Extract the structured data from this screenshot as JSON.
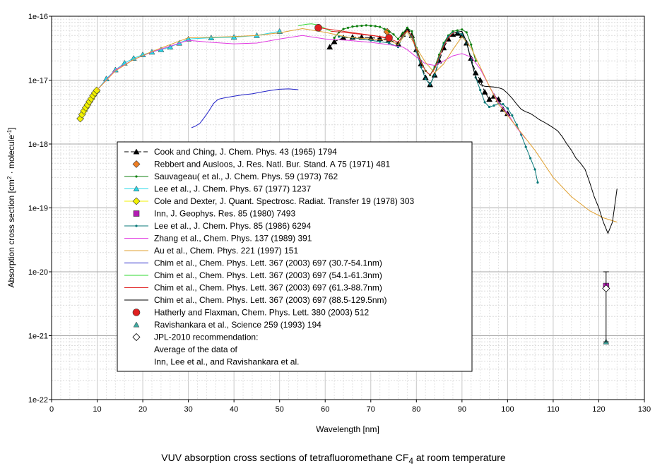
{
  "chart_data": {
    "type": "line",
    "x_label": "Wavelength [nm]",
    "y_label_parts": [
      "Absorption cross section [cm",
      "2",
      " · molecule",
      "-1",
      "]"
    ],
    "caption_parts": [
      "VUV absorption cross sections of tetrafluoromethane CF",
      "4",
      " at room temperature"
    ],
    "y_scale": "log",
    "xlim": [
      0,
      130
    ],
    "ylim": [
      1e-22,
      1e-16
    ],
    "x_ticks": [
      0,
      10,
      20,
      30,
      40,
      50,
      60,
      70,
      80,
      90,
      100,
      110,
      120,
      130
    ],
    "y_tick_labels": [
      "1e-16",
      "1e-17",
      "1e-18",
      "1e-19",
      "1e-20",
      "1e-21",
      "1e-22"
    ],
    "grid": true,
    "legend_position": "center-left",
    "series": [
      {
        "name": "Cook and Ching, J. Chem. Phys. 43 (1965) 1794",
        "color": "#000000",
        "marker": "triangle",
        "dash": "6,3",
        "x": [
          61,
          62,
          64,
          66,
          68,
          70,
          72,
          74,
          76,
          77,
          78,
          79,
          80,
          81,
          82,
          83,
          84,
          85,
          86,
          87,
          88,
          89,
          90,
          91,
          92,
          93,
          94,
          95,
          96,
          97,
          98,
          99,
          100
        ],
        "y": [
          3.3e-17,
          4e-17,
          4.6e-17,
          4.7e-17,
          4.7e-17,
          4.6e-17,
          4.5e-17,
          4.3e-17,
          3.7e-17,
          5.2e-17,
          6.2e-17,
          5e-17,
          3e-17,
          1.8e-17,
          1.1e-17,
          8.5e-18,
          1.2e-17,
          2e-17,
          3.2e-17,
          4.4e-17,
          5.2e-17,
          5.4e-17,
          5e-17,
          3.8e-17,
          2.2e-17,
          1.3e-17,
          1e-17,
          6.5e-18,
          5e-18,
          5.6e-18,
          5e-18,
          3.5e-18,
          3e-18
        ]
      },
      {
        "name": "Rebbert and Ausloos, J. Res. Natl. Bur. Stand. A 75 (1971) 481",
        "color": "#ee7f24",
        "marker": "diamond",
        "dash": "",
        "x": [
          73.6
        ],
        "y": [
          5.7e-17
        ]
      },
      {
        "name": "Sauvageau( et al., J. Chem. Phys. 59 (1973) 762",
        "color": "#108010",
        "marker": "dot",
        "dash": "",
        "x": [
          62,
          63,
          64,
          65,
          66,
          67,
          68,
          69,
          70,
          71,
          72,
          73,
          74,
          75,
          76,
          77,
          78,
          79,
          80,
          81,
          82,
          83,
          84,
          85,
          86,
          87,
          88,
          89,
          90,
          91,
          92,
          93
        ],
        "y": [
          4.6e-17,
          5.6e-17,
          6.3e-17,
          6.6e-17,
          6.9e-17,
          7e-17,
          7.1e-17,
          7.2e-17,
          7.1e-17,
          7e-17,
          6.8e-17,
          6.3e-17,
          5.8e-17,
          5.2e-17,
          4.4e-17,
          5.4e-17,
          6.6e-17,
          5.8e-17,
          3.2e-17,
          2e-17,
          1.4e-17,
          1.2e-17,
          1.6e-17,
          2.5e-17,
          3.8e-17,
          5e-17,
          5.8e-17,
          6e-17,
          6.2e-17,
          5.6e-17,
          3.6e-17,
          2e-17
        ]
      },
      {
        "name": "Lee et al., J. Chem. Phys. 67 (1977) 1237",
        "color": "#28d8e8",
        "marker": "triangle",
        "dash": "",
        "x": [
          10,
          12,
          14,
          16,
          18,
          20,
          22,
          24,
          26,
          28,
          30,
          35,
          40,
          45,
          50
        ],
        "y": [
          7e-18,
          1.05e-17,
          1.45e-17,
          1.85e-17,
          2.2e-17,
          2.5e-17,
          2.75e-17,
          3e-17,
          3.3e-17,
          3.8e-17,
          4.4e-17,
          4.6e-17,
          4.7e-17,
          5e-17,
          5.8e-17
        ]
      },
      {
        "name": "Cole and Dexter, J. Quant. Spectrosc. Radiat. Transfer 19 (1978) 303",
        "color": "#f2f200",
        "marker": "diamond",
        "dash": "",
        "x": [
          6.3,
          6.7,
          7.1,
          7.5,
          7.9,
          8.3,
          8.7,
          9.1,
          9.5,
          9.9
        ],
        "y": [
          2.5e-18,
          2.9e-18,
          3.3e-18,
          3.7e-18,
          4.1e-18,
          4.6e-18,
          5.1e-18,
          5.7e-18,
          6.3e-18,
          6.9e-18
        ]
      },
      {
        "name": "Inn, J. Geophys. Res. 85 (1980) 7493",
        "color": "#b41cb4",
        "marker": "square",
        "dash": "",
        "x": [
          121.6
        ],
        "y": [
          6e-21
        ]
      },
      {
        "name": "Lee et al., J. Chem. Phys. 85 (1986) 6294",
        "color": "#087878",
        "marker": "dot",
        "dash": "",
        "x": [
          63,
          66,
          70,
          72,
          74,
          76,
          77,
          78,
          79,
          80,
          81,
          82,
          83,
          84,
          85,
          86,
          87,
          88,
          89,
          90,
          91,
          92,
          93,
          94,
          95,
          96,
          97,
          98,
          99,
          100,
          101,
          102,
          103,
          104,
          105,
          106,
          106.6
        ],
        "y": [
          4.8e-17,
          4.6e-17,
          4.2e-17,
          4e-17,
          3.8e-17,
          3.3e-17,
          4.8e-17,
          5.9e-17,
          4.8e-17,
          2.8e-17,
          1.6e-17,
          1.05e-17,
          8.5e-18,
          1.2e-17,
          2.2e-17,
          3.6e-17,
          4.8e-17,
          5.5e-17,
          5.6e-17,
          5.2e-17,
          3.8e-17,
          2.1e-17,
          1.1e-17,
          7e-18,
          4.5e-18,
          3.8e-18,
          4e-18,
          4.3e-18,
          4.2e-18,
          3.6e-18,
          2.8e-18,
          2e-18,
          1.4e-18,
          9e-19,
          6e-19,
          4e-19,
          2.5e-19
        ]
      },
      {
        "name": "Zhang et al., Chem. Phys. 137 (1989) 391",
        "color": "#e23ce2",
        "marker": "",
        "dash": "",
        "x": [
          10,
          14,
          18,
          22,
          26,
          30,
          35,
          40,
          45,
          50,
          55,
          60,
          65,
          70,
          74,
          77,
          78,
          80,
          82,
          84,
          86,
          88,
          90,
          92,
          94,
          96,
          98,
          100,
          102,
          104
        ],
        "y": [
          7e-18,
          1.45e-17,
          2.1e-17,
          2.75e-17,
          3.4e-17,
          4.2e-17,
          3.9e-17,
          3.7e-17,
          3.8e-17,
          4.4e-17,
          5e-17,
          4.4e-17,
          4.2e-17,
          3.9e-17,
          3.6e-17,
          3.3e-17,
          3e-17,
          2.3e-17,
          1.8e-17,
          1.7e-17,
          2e-17,
          2.4e-17,
          2.6e-17,
          2.3e-17,
          1.5e-17,
          8e-18,
          4.5e-18,
          3e-18,
          1.8e-18,
          1.2e-18
        ]
      },
      {
        "name": "Au et al., Chem. Phys. 221 (1997) 151",
        "color": "#e0a030",
        "marker": "",
        "dash": "",
        "x": [
          10,
          14,
          18,
          22,
          26,
          30,
          35,
          40,
          45,
          50,
          55,
          60,
          65,
          70,
          74,
          76,
          78,
          80,
          82,
          84,
          86,
          88,
          90,
          92,
          94,
          96,
          98,
          100,
          103,
          106,
          110,
          114,
          118,
          121,
          124
        ],
        "y": [
          7e-18,
          1.4e-17,
          2.1e-17,
          2.8e-17,
          3.6e-17,
          4.6e-17,
          4.7e-17,
          4.8e-17,
          5e-17,
          5.5e-17,
          6.4e-17,
          5.6e-17,
          4.7e-17,
          4.4e-17,
          4.2e-17,
          3.6e-17,
          5.8e-17,
          3.2e-17,
          1.9e-17,
          1.3e-17,
          1.8e-17,
          3e-17,
          4.8e-17,
          3.2e-17,
          1.6e-17,
          8e-18,
          4.2e-18,
          2.8e-18,
          1.5e-18,
          8e-19,
          3e-19,
          1.5e-19,
          9e-20,
          7e-20,
          6e-20
        ]
      },
      {
        "name": "Chim et al., Chem. Phys. Lett. 367 (2003) 697 (30.7-54.1nm)",
        "color": "#2020c8",
        "marker": "",
        "dash": "",
        "x": [
          30.7,
          31.5,
          32.5,
          33.5,
          34.5,
          35.5,
          36.5,
          38,
          40,
          42,
          44,
          46,
          48,
          50,
          52,
          54.1
        ],
        "y": [
          1.8e-18,
          1.9e-18,
          2.1e-18,
          2.6e-18,
          3.3e-18,
          4.3e-18,
          5e-18,
          5.3e-18,
          5.6e-18,
          5.9e-18,
          6.1e-18,
          6.5e-18,
          6.9e-18,
          7.2e-18,
          7.3e-18,
          7.1e-18
        ]
      },
      {
        "name": "Chim et al., Chem. Phys. Lett. 367 (2003) 697 (54.1-61.3nm)",
        "color": "#30d830",
        "marker": "",
        "dash": "",
        "x": [
          54.1,
          55,
          56,
          57,
          58,
          59,
          60,
          61.3
        ],
        "y": [
          7.1e-17,
          7.3e-17,
          7.5e-17,
          7.6e-17,
          7.4e-17,
          7e-17,
          6.4e-17,
          5.8e-17
        ]
      },
      {
        "name": "Chim et al., Chem. Phys. Lett. 367 (2003) 697 (61.3-88.7nm)",
        "color": "#e02020",
        "marker": "",
        "dash": "",
        "x": [
          61.3,
          63,
          65,
          67,
          69,
          71,
          73,
          75,
          76,
          77,
          78,
          79,
          80,
          81,
          82,
          83,
          84,
          85,
          86,
          87,
          88,
          88.7
        ],
        "y": [
          5.8e-17,
          5.7e-17,
          5.5e-17,
          5.3e-17,
          5.1e-17,
          4.9e-17,
          4.6e-17,
          4.2e-17,
          3.9e-17,
          5e-17,
          6e-17,
          5e-17,
          3e-17,
          1.9e-17,
          1.4e-17,
          1.2e-17,
          1.5e-17,
          2.3e-17,
          3.4e-17,
          4.6e-17,
          5.4e-17,
          5.6e-17
        ]
      },
      {
        "name": "Chim et al., Chem. Phys. Lett. 367 (2003) 697 (88.5-129.5nm)",
        "color": "#000000",
        "marker": "",
        "dash": "",
        "x": [
          88.5,
          90,
          91,
          92,
          93,
          94,
          95,
          96,
          97,
          98,
          99,
          100,
          101,
          102,
          103,
          104,
          105,
          106,
          107,
          108,
          109,
          110,
          111,
          112,
          113,
          114,
          115,
          116,
          117,
          118,
          119,
          120,
          121,
          122,
          123,
          124
        ],
        "y": [
          5.6e-17,
          5.8e-17,
          4e-17,
          2e-17,
          1.1e-17,
          8.5e-18,
          8e-18,
          7.9e-18,
          7.8e-18,
          7.6e-18,
          7.2e-18,
          6.2e-18,
          5.2e-18,
          4.2e-18,
          3.5e-18,
          3.2e-18,
          3e-18,
          2.7e-18,
          2.4e-18,
          2.2e-18,
          2e-18,
          1.8e-18,
          1.6e-18,
          1.3e-18,
          1e-18,
          8e-19,
          6e-19,
          5e-19,
          4e-19,
          2.5e-19,
          1.5e-19,
          1e-19,
          6e-20,
          4e-20,
          6e-20,
          2e-19
        ]
      },
      {
        "name": "Hatherly and Flaxman, Chem. Phys. Lett. 380 (2003) 512",
        "color": "#e02020",
        "marker": "circle",
        "dash": "",
        "x": [
          58.5,
          74
        ],
        "y": [
          6.6e-17,
          4.6e-17
        ]
      },
      {
        "name": "Ravishankara et al., Science 259 (1993) 194",
        "color": "#40a8a0",
        "marker": "triangle",
        "dash": "",
        "x": [
          121.6
        ],
        "y": [
          8e-22
        ]
      },
      {
        "name": "JPL-2010 recommendation:",
        "name_lines": [
          "Average of the data of",
          "Inn, Lee et al., and Ravishankara et al."
        ],
        "color": "#000000",
        "marker": "hollow-diamond",
        "dash": "",
        "x": [
          121.6
        ],
        "y": [
          5.5e-21
        ],
        "error_low": 8e-22,
        "error_high": 1e-20
      }
    ]
  }
}
